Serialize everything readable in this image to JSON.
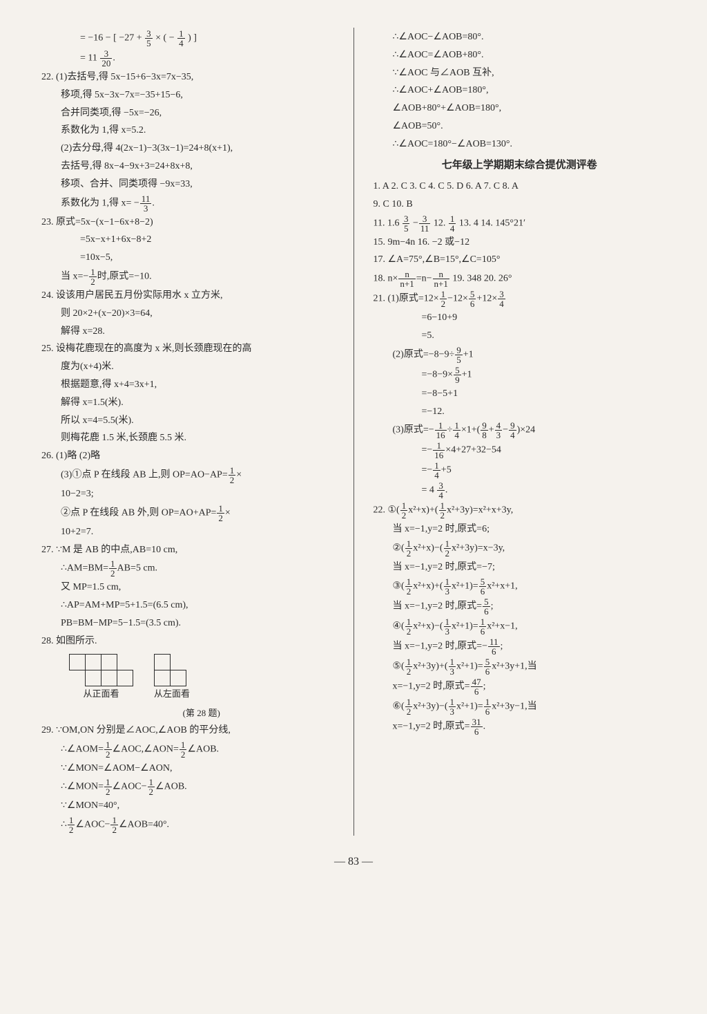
{
  "left": {
    "l0": "= −16 − [ −27 + ",
    "l0b": " × ( − ",
    "l0c": " ) ]",
    "f1n": "3",
    "f1d": "5",
    "f2n": "1",
    "f2d": "4",
    "l1": "= 11 ",
    "f3n": "3",
    "f3d": "20",
    "q22a": "22. (1)去括号,得 5x−15+6−3x=7x−35,",
    "q22b": "移项,得 5x−3x−7x=−35+15−6,",
    "q22c": "合并同类项,得 −5x=−26,",
    "q22d": "系数化为 1,得 x=5.2.",
    "q22e": "(2)去分母,得 4(2x−1)−3(3x−1)=24+8(x+1),",
    "q22f": "去括号,得 8x−4−9x+3=24+8x+8,",
    "q22g": "移项、合并、同类项得 −9x=33,",
    "q22h": "系数化为 1,得 x= −",
    "f4n": "11",
    "f4d": "3",
    "dot": ".",
    "q23a": "23. 原式=5x−(x−1−6x+8−2)",
    "q23b": "=5x−x+1+6x−8+2",
    "q23c": "=10x−5,",
    "q23d": "当 x=−",
    "f5n": "1",
    "f5d": "2",
    "q23e": "时,原式=−10.",
    "q24a": "24. 设该用户居民五月份实际用水 x 立方米,",
    "q24b": "则 20×2+(x−20)×3=64,",
    "q24c": "解得  x=28.",
    "q25a": "25. 设梅花鹿现在的高度为 x 米,则长颈鹿现在的高",
    "q25b": "度为(x+4)米.",
    "q25c": "根据题意,得 x+4=3x+1,",
    "q25d": "解得 x=1.5(米).",
    "q25e": "所以 x=4=5.5(米).",
    "q25f": "则梅花鹿 1.5 米,长颈鹿 5.5 米.",
    "q26a": "26. (1)略  (2)略",
    "q26b": "(3)①点 P 在线段 AB 上,则 OP=AO−AP=",
    "f6n": "1",
    "f6d": "2",
    "q26c": "×",
    "q26d": "10−2=3;",
    "q26e": "②点 P 在线段 AB 外,则 OP=AO+AP=",
    "q26f": "10+2=7.",
    "q27a": "27. ∵M 是 AB 的中点,AB=10 cm,",
    "q27b": "∴AM=BM=",
    "q27c": "AB=5 cm.",
    "q27d": "又 MP=1.5 cm,",
    "q27e": "∴AP=AM+MP=5+1.5=(6.5 cm),",
    "q27f": "PB=BM−MP=5−1.5=(3.5 cm).",
    "q28a": "28. 如图所示.",
    "cap1": "从正面看",
    "cap2": "从左面看",
    "cap3": "(第 28 题)",
    "q29a": "29. ∵OM,ON 分别是∠AOC,∠AOB 的平分线,",
    "q29b": "∴∠AOM=",
    "q29b2": "∠AOC,∠AON=",
    "q29b3": "∠AOB.",
    "q29c": "∵∠MON=∠AOM−∠AON,",
    "q29d": "∴∠MON=",
    "q29d2": "∠AOC−",
    "q29d3": "∠AOB.",
    "q29e": "∵∠MON=40°,",
    "q29f": "∴",
    "q29f2": "∠AOC−",
    "q29f3": "∠AOB=40°."
  },
  "right": {
    "r0": "∴∠AOC−∠AOB=80°.",
    "r1": "∴∠AOC=∠AOB+80°.",
    "r2": "∵∠AOC 与∠AOB 互补,",
    "r3": "∴∠AOC+∠AOB=180°,",
    "r4": "∠AOB+80°+∠AOB=180°,",
    "r5": "∠AOB=50°.",
    "r6": "∴∠AOC=180°−∠AOB=130°.",
    "title": "七年级上学期期末综合提优测评卷",
    "ans1": "1. A  2. C  3. C  4. C  5. D  6. A  7. C  8. A",
    "ans2": "9. C  10. B",
    "a11": "11. 1.6  ",
    "f7n": "3",
    "f7d": "5",
    "a11b": "   −",
    "f8n": "3",
    "f8d": "11",
    "a12": "   12. ",
    "f9n": "1",
    "f9d": "4",
    "a13": "   13. 4   14. 145°21′",
    "a15": "15. 9m−4n   16. −2 或−12",
    "a17": "17. ∠A=75°,∠B=15°,∠C=105°",
    "a18": "18. n×",
    "f10n": "n",
    "f10d": "n+1",
    "a18b": "=n−",
    "a18c": "   19. 348   20. 26°",
    "a21": "21. (1)原式=12×",
    "a21b": "−12×",
    "f11n": "5",
    "f11d": "6",
    "a21c": "+12×",
    "f12n": "3",
    "f12d": "4",
    "a21d": "=6−10+9",
    "a21e": "=5.",
    "a21f": "(2)原式=−8−9÷",
    "f13n": "9",
    "f13d": "5",
    "a21g": "+1",
    "a21h": "=−8−9×",
    "f14n": "5",
    "f14d": "9",
    "a21i": "=−8−5+1",
    "a21j": "=−12.",
    "a21k": "(3)原式=−",
    "f15n": "1",
    "f15d": "16",
    "a21l": "÷",
    "f16n": "1",
    "f16d": "4",
    "a21m": "×1+(",
    "f17n": "9",
    "f17d": "8",
    "a21n": "+",
    "f18n": "4",
    "f18d": "3",
    "a21o": "−",
    "f19n": "9",
    "f19d": "4",
    "a21p": ")×24",
    "a21q": "=−",
    "a21r": "×4+27+32−54",
    "a21s": "=−",
    "a21t": "+5",
    "a21u": "= 4 ",
    "a22": "22. ①(",
    "half_n": "1",
    "half_d": "2",
    "a22a": "x²+x)+(",
    "a22b": "x²+3y)=x²+x+3y,",
    "a22c": "当 x=−1,y=2 时,原式=6;",
    "a22d": "②(",
    "a22e": "x²+x)−(",
    "a22f": "x²+3y)=x−3y,",
    "a22g": "当 x=−1,y=2 时,原式=−7;",
    "a22h": "③(",
    "third_n": "1",
    "third_d": "3",
    "a22i": "x²+x)+(",
    "a22j": "x²+1)=",
    "f20n": "5",
    "f20d": "6",
    "a22k": "x²+x+1,",
    "a22l": "当 x=−1,y=2 时,原式=",
    "a22m": ";",
    "a22n": "④(",
    "a22o": "x²+x)−(",
    "a22p": "x²+1)=",
    "f21n": "1",
    "f21d": "6",
    "a22q": "x²+x−1,",
    "a22r": "当 x=−1,y=2 时,原式=−",
    "f22n": "11",
    "f22d": "6",
    "a22s": "⑤(",
    "a22t": "x²+3y)+(",
    "a22u": "x²+1)=",
    "a22v": "x²+3y+1,当",
    "a22w": "x=−1,y=2 时,原式=",
    "f23n": "47",
    "f23d": "6",
    "a22x": "⑥(",
    "a22y": "x²+3y)−(",
    "a22z": "x²+1)=",
    "a22z2": "x²+3y−1,当",
    "a22z3": "x=−1,y=2 时,原式=",
    "f24n": "31",
    "f24d": "6"
  },
  "pagenum": "— 83 —"
}
